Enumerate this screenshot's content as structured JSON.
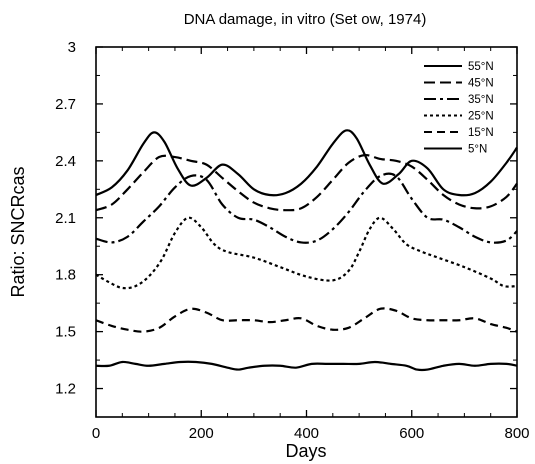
{
  "chart_data": {
    "type": "line",
    "title": "DNA damage, in vitro (Set ow, 1974)",
    "xlabel": "Days",
    "ylabel": "Ratio: SNCRcas",
    "xlim": [
      0,
      800
    ],
    "ylim": [
      1.05,
      3.0
    ],
    "xticks": [
      0,
      200,
      400,
      600,
      800
    ],
    "yticks": [
      1.2,
      1.5,
      1.8,
      2.1,
      2.4,
      2.7,
      3.0
    ],
    "ytick_labels": [
      "1.2",
      "1.5",
      "1.8",
      "2.1",
      "2.4",
      "2.7",
      "3"
    ],
    "grid": false,
    "legend_position": "top-right",
    "series": [
      {
        "name": "55°N",
        "dash": "solid",
        "x": [
          0,
          30,
          60,
          90,
          110,
          130,
          155,
          180,
          210,
          240,
          270,
          300,
          330,
          360,
          390,
          420,
          450,
          475,
          495,
          520,
          545,
          575,
          600,
          630,
          660,
          690,
          720,
          750,
          780,
          800
        ],
        "y": [
          2.22,
          2.26,
          2.35,
          2.49,
          2.55,
          2.5,
          2.36,
          2.27,
          2.31,
          2.38,
          2.33,
          2.25,
          2.22,
          2.23,
          2.28,
          2.37,
          2.49,
          2.56,
          2.52,
          2.38,
          2.28,
          2.33,
          2.4,
          2.36,
          2.25,
          2.22,
          2.23,
          2.29,
          2.39,
          2.47
        ]
      },
      {
        "name": "45°N",
        "dash": "long-dash",
        "x": [
          0,
          30,
          60,
          90,
          120,
          150,
          180,
          210,
          240,
          270,
          300,
          330,
          360,
          390,
          420,
          450,
          480,
          510,
          540,
          570,
          600,
          630,
          660,
          690,
          720,
          750,
          780,
          800
        ],
        "y": [
          2.14,
          2.17,
          2.25,
          2.34,
          2.42,
          2.42,
          2.4,
          2.38,
          2.31,
          2.24,
          2.18,
          2.15,
          2.14,
          2.15,
          2.21,
          2.3,
          2.39,
          2.43,
          2.41,
          2.4,
          2.37,
          2.3,
          2.22,
          2.17,
          2.15,
          2.16,
          2.21,
          2.28
        ]
      },
      {
        "name": "35°N",
        "dash": "dash-dot",
        "x": [
          0,
          30,
          60,
          90,
          120,
          150,
          180,
          210,
          240,
          270,
          300,
          330,
          360,
          390,
          420,
          450,
          480,
          510,
          540,
          570,
          600,
          630,
          660,
          690,
          720,
          750,
          780,
          800
        ],
        "y": [
          1.99,
          1.97,
          2.0,
          2.08,
          2.16,
          2.26,
          2.32,
          2.3,
          2.17,
          2.1,
          2.09,
          2.05,
          2.0,
          1.97,
          1.98,
          2.04,
          2.13,
          2.24,
          2.32,
          2.32,
          2.2,
          2.1,
          2.09,
          2.05,
          2.0,
          1.97,
          1.98,
          2.03
        ]
      },
      {
        "name": "25°N",
        "dash": "dotted",
        "x": [
          0,
          25,
          50,
          75,
          100,
          125,
          150,
          175,
          200,
          225,
          250,
          300,
          350,
          400,
          450,
          480,
          500,
          520,
          540,
          565,
          590,
          620,
          650,
          700,
          750,
          775,
          800
        ],
        "y": [
          1.8,
          1.76,
          1.73,
          1.74,
          1.79,
          1.88,
          2.02,
          2.1,
          2.05,
          1.96,
          1.92,
          1.89,
          1.84,
          1.79,
          1.77,
          1.82,
          1.92,
          2.04,
          2.1,
          2.04,
          1.96,
          1.92,
          1.89,
          1.84,
          1.78,
          1.74,
          1.74
        ]
      },
      {
        "name": "15°N",
        "dash": "medium-dash",
        "x": [
          0,
          30,
          60,
          90,
          120,
          150,
          180,
          210,
          240,
          270,
          300,
          330,
          360,
          390,
          420,
          450,
          480,
          510,
          540,
          570,
          600,
          630,
          660,
          690,
          720,
          750,
          780,
          800
        ],
        "y": [
          1.56,
          1.53,
          1.51,
          1.5,
          1.52,
          1.58,
          1.62,
          1.6,
          1.56,
          1.56,
          1.56,
          1.55,
          1.56,
          1.57,
          1.53,
          1.51,
          1.52,
          1.57,
          1.62,
          1.61,
          1.57,
          1.56,
          1.56,
          1.56,
          1.57,
          1.54,
          1.52,
          1.5
        ]
      },
      {
        "name": "5°N",
        "dash": "solid",
        "x": [
          0,
          25,
          50,
          75,
          100,
          130,
          160,
          190,
          220,
          250,
          270,
          290,
          320,
          350,
          380,
          410,
          440,
          470,
          500,
          530,
          560,
          590,
          610,
          630,
          660,
          690,
          720,
          750,
          780,
          800
        ],
        "y": [
          1.32,
          1.32,
          1.34,
          1.33,
          1.32,
          1.33,
          1.34,
          1.34,
          1.33,
          1.31,
          1.3,
          1.31,
          1.32,
          1.32,
          1.31,
          1.33,
          1.33,
          1.33,
          1.33,
          1.34,
          1.33,
          1.32,
          1.3,
          1.3,
          1.32,
          1.33,
          1.32,
          1.33,
          1.33,
          1.32
        ]
      }
    ]
  },
  "styles": {
    "line_color": "#000000",
    "background": "#ffffff"
  }
}
